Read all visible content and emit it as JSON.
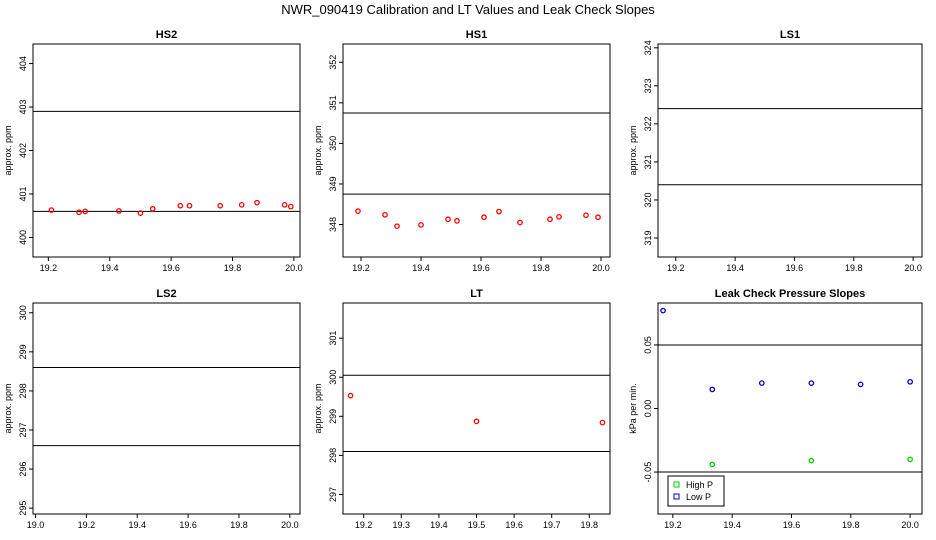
{
  "title": "NWR_090419  Calibration and LT Values and Leak Check Slopes",
  "chart_data": [
    {
      "type": "scatter",
      "title": "HS2",
      "ylabel": "approx. ppm",
      "xlim": [
        19.15,
        20.02
      ],
      "ylim": [
        399.55,
        404.45
      ],
      "xticks": [
        19.2,
        19.4,
        19.6,
        19.8,
        20.0
      ],
      "xtick_labels": [
        "19.2",
        "19.4",
        "19.6",
        "19.8",
        "20.0"
      ],
      "yticks": [
        400,
        401,
        402,
        403,
        404
      ],
      "ytick_labels": [
        "400",
        "401",
        "402",
        "403",
        "404"
      ],
      "hlines": [
        402.9,
        400.6
      ],
      "series": [
        {
          "color": "#ff0000",
          "x": [
            19.21,
            19.3,
            19.32,
            19.43,
            19.5,
            19.54,
            19.63,
            19.66,
            19.76,
            19.83,
            19.88,
            19.97,
            19.99
          ],
          "y": [
            400.63,
            400.58,
            400.6,
            400.61,
            400.56,
            400.66,
            400.73,
            400.73,
            400.73,
            400.75,
            400.8,
            400.75,
            400.71
          ]
        }
      ]
    },
    {
      "type": "scatter",
      "title": "HS1",
      "ylabel": "approx. ppm",
      "xlim": [
        19.14,
        20.03
      ],
      "ylim": [
        347.2,
        352.45
      ],
      "xticks": [
        19.2,
        19.4,
        19.6,
        19.8,
        20.0
      ],
      "xtick_labels": [
        "19.2",
        "19.4",
        "19.6",
        "19.8",
        "20.0"
      ],
      "yticks": [
        348,
        349,
        350,
        351,
        352
      ],
      "ytick_labels": [
        "348",
        "349",
        "350",
        "351",
        "352"
      ],
      "hlines": [
        350.75,
        348.75
      ],
      "series": [
        {
          "color": "#ff0000",
          "x": [
            19.19,
            19.28,
            19.32,
            19.4,
            19.49,
            19.52,
            19.61,
            19.66,
            19.73,
            19.83,
            19.86,
            19.95,
            19.99
          ],
          "y": [
            348.33,
            348.24,
            347.96,
            347.99,
            348.13,
            348.09,
            348.18,
            348.32,
            348.05,
            348.13,
            348.19,
            348.23,
            348.18
          ]
        }
      ]
    },
    {
      "type": "scatter",
      "title": "LS1",
      "ylabel": "approx. ppm",
      "xlim": [
        19.14,
        20.03
      ],
      "ylim": [
        318.5,
        324.1
      ],
      "xticks": [
        19.2,
        19.4,
        19.6,
        19.8,
        20.0
      ],
      "xtick_labels": [
        "19.2",
        "19.4",
        "19.6",
        "19.8",
        "20.0"
      ],
      "yticks": [
        319,
        320,
        321,
        322,
        323,
        324
      ],
      "ytick_labels": [
        "319",
        "320",
        "321",
        "322",
        "323",
        "324"
      ],
      "hlines": [
        322.4,
        320.4
      ],
      "series": []
    },
    {
      "type": "scatter",
      "title": "LS2",
      "ylabel": "approx. ppm",
      "xlim": [
        18.99,
        20.04
      ],
      "ylim": [
        294.85,
        300.25
      ],
      "xticks": [
        19.0,
        19.2,
        19.4,
        19.6,
        19.8,
        20.0
      ],
      "xtick_labels": [
        "19.0",
        "19.2",
        "19.4",
        "19.6",
        "19.8",
        "20.0"
      ],
      "yticks": [
        295,
        296,
        297,
        298,
        299,
        300
      ],
      "ytick_labels": [
        "295",
        "296",
        "297",
        "298",
        "299",
        "300"
      ],
      "hlines": [
        298.6,
        296.6
      ],
      "series": []
    },
    {
      "type": "scatter",
      "title": "LT",
      "ylabel": "approx. ppm",
      "xlim": [
        19.145,
        19.855
      ],
      "ylim": [
        296.5,
        301.9
      ],
      "xticks": [
        19.2,
        19.3,
        19.4,
        19.5,
        19.6,
        19.7,
        19.8
      ],
      "xtick_labels": [
        "19.2",
        "19.3",
        "19.4",
        "19.5",
        "19.6",
        "19.7",
        "19.8"
      ],
      "yticks": [
        297,
        298,
        299,
        300,
        301
      ],
      "ytick_labels": [
        "297",
        "298",
        "299",
        "300",
        "301"
      ],
      "hlines": [
        300.05,
        298.1
      ],
      "series": [
        {
          "color": "#ff0000",
          "x": [
            19.165,
            19.5,
            19.835
          ],
          "y": [
            299.53,
            298.87,
            298.84
          ]
        }
      ]
    },
    {
      "type": "scatter",
      "title": "Leak Check Pressure Slopes",
      "ylabel": "kPa per min.",
      "xlim": [
        19.15,
        20.04
      ],
      "ylim": [
        -0.083,
        0.083
      ],
      "xticks": [
        19.2,
        19.4,
        19.6,
        19.8,
        20.0
      ],
      "xtick_labels": [
        "19.2",
        "19.4",
        "19.6",
        "19.8",
        "20.0"
      ],
      "yticks": [
        -0.05,
        0.0,
        0.05
      ],
      "ytick_labels": [
        "-0.05",
        "0.00",
        "0.05"
      ],
      "hlines": [
        0.05,
        -0.05
      ],
      "legend": "bottom-left",
      "series": [
        {
          "name": "High P",
          "color": "#00cc00",
          "x": [
            19.333,
            19.667,
            20.0
          ],
          "y": [
            -0.044,
            -0.041,
            -0.04
          ]
        },
        {
          "name": "Low P",
          "color": "#0000cc",
          "x": [
            19.167,
            19.333,
            19.5,
            19.667,
            19.833,
            20.0
          ],
          "y": [
            0.077,
            0.015,
            0.02,
            0.02,
            0.019,
            0.021
          ]
        }
      ]
    }
  ]
}
